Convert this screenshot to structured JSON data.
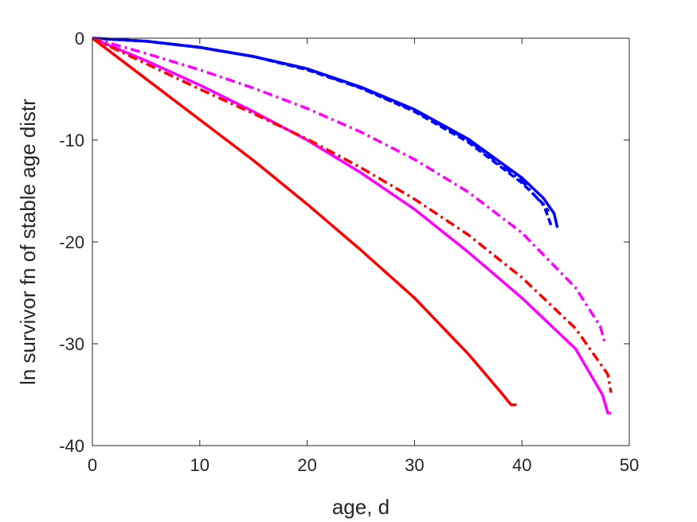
{
  "chart_data": {
    "type": "line",
    "title": "",
    "xlabel": "age, d",
    "ylabel": "ln survivor fn of stable age distr",
    "xlim": [
      0,
      50
    ],
    "ylim": [
      -40,
      0
    ],
    "xticks": [
      0,
      10,
      20,
      30,
      40,
      50
    ],
    "yticks": [
      0,
      -10,
      -20,
      -30,
      -40
    ],
    "grid": false,
    "legend": "none",
    "series": [
      {
        "color": "#0000ff",
        "style": "solid",
        "x": [
          0,
          5,
          10,
          15,
          20,
          25,
          30,
          35,
          40,
          42,
          43,
          43.3
        ],
        "y": [
          0,
          -0.3,
          -0.9,
          -1.8,
          -3.0,
          -4.8,
          -7.0,
          -9.9,
          -13.7,
          -15.7,
          -17.2,
          -18.6
        ]
      },
      {
        "color": "#0000ff",
        "style": "dashed",
        "x": [
          0,
          5,
          10,
          15,
          20,
          25,
          30,
          35,
          40,
          42,
          42.8
        ],
        "y": [
          0,
          -0.3,
          -0.9,
          -1.8,
          -3.1,
          -4.9,
          -7.2,
          -10.2,
          -14.2,
          -16.3,
          -18.6
        ]
      },
      {
        "color": "#0000ff",
        "style": "dashdot",
        "x": [
          0,
          5,
          10,
          15,
          20,
          25,
          30,
          35,
          40,
          42.5
        ],
        "y": [
          0,
          -0.3,
          -0.9,
          -1.8,
          -3.0,
          -4.9,
          -7.1,
          -10.0,
          -14.0,
          -17.0
        ]
      },
      {
        "color": "#ff00ff",
        "style": "solid",
        "x": [
          0,
          5,
          10,
          15,
          20,
          25,
          30,
          35,
          40,
          45,
          47.5,
          48,
          48.3
        ],
        "y": [
          0,
          -2.2,
          -4.6,
          -7.2,
          -10.0,
          -13.2,
          -16.8,
          -21.0,
          -25.5,
          -30.5,
          -35.0,
          -36.8,
          -36.8
        ]
      },
      {
        "color": "#ff00ff",
        "style": "dashdot",
        "x": [
          0,
          5,
          10,
          15,
          20,
          25,
          30,
          35,
          40,
          45,
          47.3,
          47.7
        ],
        "y": [
          0,
          -1.5,
          -3.1,
          -4.9,
          -6.9,
          -9.2,
          -11.9,
          -15.1,
          -19.1,
          -24.5,
          -28.3,
          -29.8
        ]
      },
      {
        "color": "#ff0000",
        "style": "solid",
        "x": [
          0,
          5,
          10,
          15,
          20,
          25,
          30,
          35,
          38,
          39,
          39.5
        ],
        "y": [
          0,
          -4.0,
          -8.0,
          -12.0,
          -16.3,
          -20.8,
          -25.5,
          -31.0,
          -34.7,
          -36.0,
          -36.0
        ]
      },
      {
        "color": "#ff0000",
        "style": "dashdot",
        "x": [
          0,
          5,
          10,
          15,
          20,
          25,
          30,
          35,
          40,
          45,
          48,
          48.3
        ],
        "y": [
          0,
          -2.5,
          -5.0,
          -7.4,
          -9.9,
          -12.7,
          -15.8,
          -19.3,
          -23.5,
          -28.5,
          -33.0,
          -34.8
        ]
      }
    ]
  }
}
